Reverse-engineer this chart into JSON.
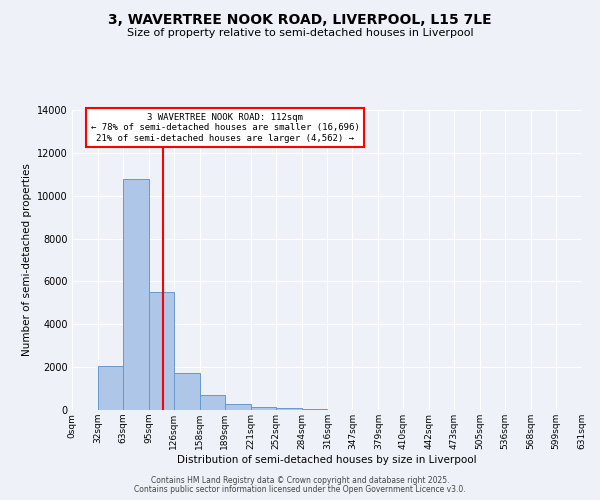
{
  "title": "3, WAVERTREE NOOK ROAD, LIVERPOOL, L15 7LE",
  "subtitle": "Size of property relative to semi-detached houses in Liverpool",
  "xlabel": "Distribution of semi-detached houses by size in Liverpool",
  "ylabel": "Number of semi-detached properties",
  "bin_edges": [
    0,
    32,
    63,
    95,
    126,
    158,
    189,
    221,
    252,
    284,
    316,
    347,
    379,
    410,
    442,
    473,
    505,
    536,
    568,
    599,
    631
  ],
  "bin_labels": [
    "0sqm",
    "32sqm",
    "63sqm",
    "95sqm",
    "126sqm",
    "158sqm",
    "189sqm",
    "221sqm",
    "252sqm",
    "284sqm",
    "316sqm",
    "347sqm",
    "379sqm",
    "410sqm",
    "442sqm",
    "473sqm",
    "505sqm",
    "536sqm",
    "568sqm",
    "599sqm",
    "631sqm"
  ],
  "counts": [
    0,
    2050,
    10800,
    5500,
    1750,
    700,
    300,
    150,
    100,
    50,
    20,
    10,
    5,
    5,
    5,
    0,
    0,
    0,
    0,
    0
  ],
  "bar_color": "#aec6e8",
  "bar_edge_color": "#6699cc",
  "vline_x": 112,
  "vline_color": "red",
  "property_size": 112,
  "pct_smaller": 78,
  "n_smaller": 16696,
  "pct_larger": 21,
  "n_larger": 4562,
  "annotation_box_color": "white",
  "annotation_box_edge": "red",
  "ylim": [
    0,
    14000
  ],
  "yticks": [
    0,
    2000,
    4000,
    6000,
    8000,
    10000,
    12000,
    14000
  ],
  "footer1": "Contains HM Land Registry data © Crown copyright and database right 2025.",
  "footer2": "Contains public sector information licensed under the Open Government Licence v3.0.",
  "background_color": "#eef2f8",
  "grid_color": "white",
  "title_fontsize": 10,
  "subtitle_fontsize": 8
}
